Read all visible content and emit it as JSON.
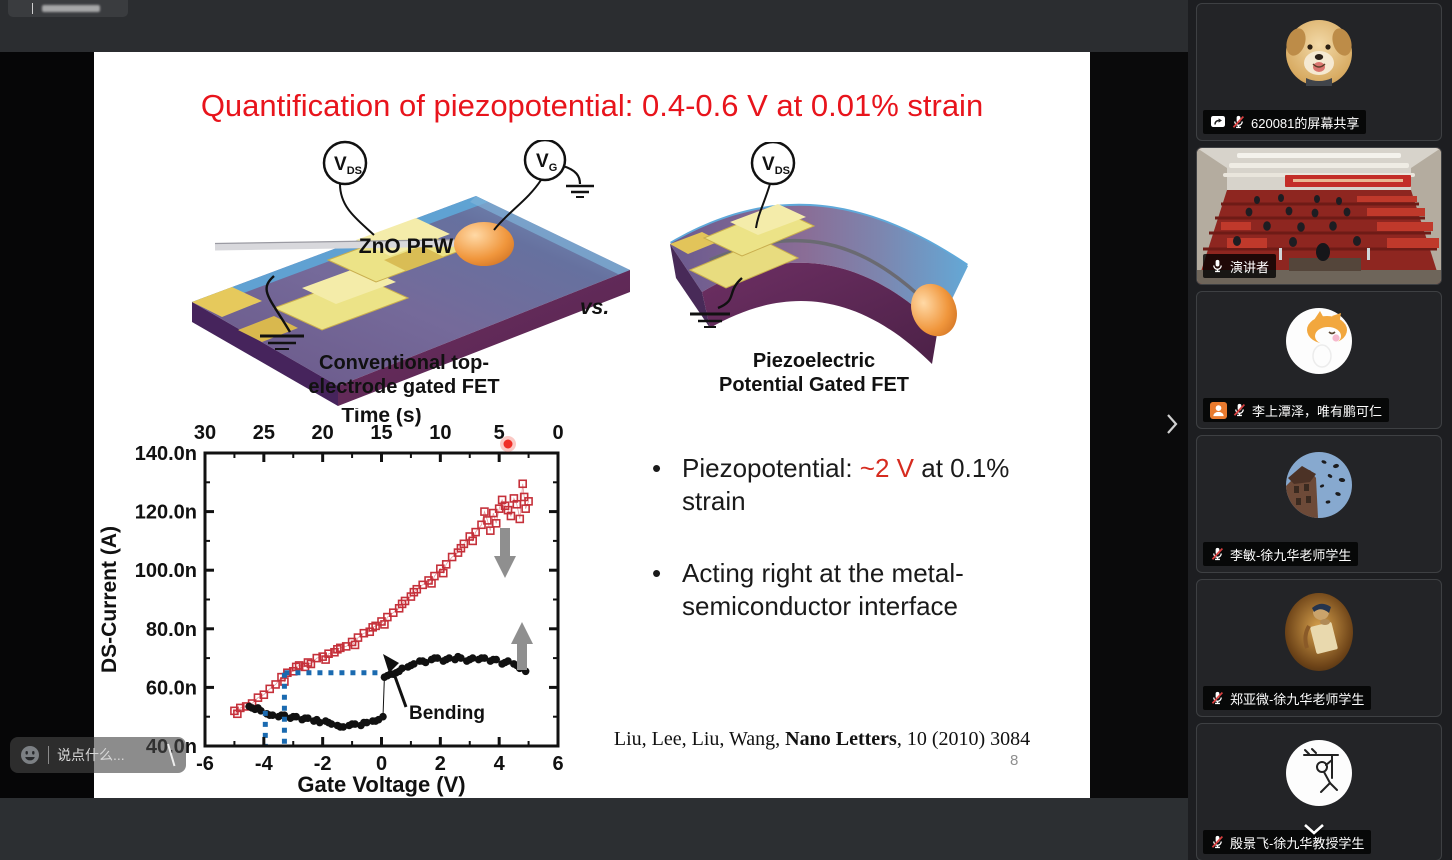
{
  "app": {
    "chat": {
      "placeholder": "说点什么..."
    },
    "colors": {
      "title_red": "#e8141c",
      "highlight_red": "#d62b1f",
      "app_bg": "#2b2d30",
      "sidebar_bg": "#1d1e21"
    }
  },
  "slide": {
    "title": "Quantification of piezopotential: 0.4-0.6 V at 0.01% strain",
    "device_left": {
      "meter1": {
        "base": "V",
        "sub": "DS"
      },
      "meter2": {
        "base": "V",
        "sub": "G"
      },
      "wire_label": "ZnO PFW",
      "caption": [
        "Conventional top-",
        "electrode gated FET"
      ]
    },
    "vs_label": "vs.",
    "device_right": {
      "meter1": {
        "base": "V",
        "sub": "DS"
      },
      "caption": [
        "Piezoelectric",
        "Potential Gated FET"
      ]
    },
    "bullets": [
      {
        "pre": "Piezopotential: ",
        "highlight": "~2 V",
        "post": " at 0.1% strain"
      },
      {
        "pre": "Acting right at the metal-semiconductor interface",
        "highlight": "",
        "post": ""
      }
    ],
    "citation": {
      "authors": "Liu, Lee, Liu, Wang, ",
      "journal": "Nano Letters",
      "rest": ", 10 (2010) 3084"
    },
    "page_number": "8"
  },
  "chart_data": {
    "type": "scatter",
    "xlabel": "Gate Voltage (V)",
    "x2label": "Time (s)",
    "ylabel": "DS-Current (A)",
    "xlim": [
      -6,
      6
    ],
    "x2lim_seconds": [
      30,
      0
    ],
    "ylim_nA": [
      40,
      140
    ],
    "grid": false,
    "x_ticks": [
      "-6",
      "-4",
      "-2",
      "0",
      "2",
      "4",
      "6"
    ],
    "x2_ticks": [
      "30",
      "25",
      "20",
      "15",
      "10",
      "5",
      "0"
    ],
    "y_ticks": [
      "140.0n",
      "120.0n",
      "100.0n",
      "80.0n",
      "60.0n",
      "40.0n"
    ],
    "annotations": {
      "bending": "Bending"
    },
    "colors": {
      "blue_guide": "#1a6ab0",
      "arrow_gray": "#8f8f8f",
      "laser_red": "#ef2f28"
    },
    "series": [
      {
        "name": "red-open-squares-sweep",
        "marker": "open-square",
        "color": "#c5303a",
        "points": [
          [
            -5.0,
            52
          ],
          [
            -4.9,
            51
          ],
          [
            -4.8,
            53
          ],
          [
            -4.6,
            53.5
          ],
          [
            -4.4,
            54.5
          ],
          [
            -4.2,
            56.5
          ],
          [
            -4.0,
            57.5
          ],
          [
            -3.8,
            59.5
          ],
          [
            -3.6,
            61
          ],
          [
            -3.4,
            63.5
          ],
          [
            -3.3,
            62
          ],
          [
            -3.2,
            65
          ],
          [
            -3.0,
            65.5
          ],
          [
            -2.9,
            67
          ],
          [
            -2.8,
            67.5
          ],
          [
            -2.6,
            67
          ],
          [
            -2.5,
            68.5
          ],
          [
            -2.4,
            68
          ],
          [
            -2.2,
            70
          ],
          [
            -2.0,
            70.5
          ],
          [
            -1.9,
            69.5
          ],
          [
            -1.8,
            71.5
          ],
          [
            -1.6,
            72
          ],
          [
            -1.5,
            73
          ],
          [
            -1.4,
            73.5
          ],
          [
            -1.2,
            74
          ],
          [
            -1.0,
            75.5
          ],
          [
            -0.9,
            74.5
          ],
          [
            -0.8,
            77
          ],
          [
            -0.6,
            78.5
          ],
          [
            -0.4,
            79
          ],
          [
            -0.3,
            80.5
          ],
          [
            -0.2,
            81
          ],
          [
            0.0,
            82.5
          ],
          [
            0.1,
            81.5
          ],
          [
            0.2,
            84
          ],
          [
            0.4,
            85.5
          ],
          [
            0.6,
            87
          ],
          [
            0.7,
            88.5
          ],
          [
            0.8,
            89.5
          ],
          [
            1.0,
            91
          ],
          [
            1.1,
            92.5
          ],
          [
            1.2,
            93.5
          ],
          [
            1.4,
            95
          ],
          [
            1.6,
            96.5
          ],
          [
            1.7,
            95.5
          ],
          [
            1.8,
            98
          ],
          [
            2.0,
            100.5
          ],
          [
            2.1,
            99
          ],
          [
            2.2,
            102
          ],
          [
            2.4,
            104.5
          ],
          [
            2.6,
            106
          ],
          [
            2.7,
            107.5
          ],
          [
            2.8,
            109
          ],
          [
            3.0,
            111.5
          ],
          [
            3.1,
            110
          ],
          [
            3.2,
            113
          ],
          [
            3.4,
            115.5
          ],
          [
            3.5,
            120
          ],
          [
            3.6,
            117
          ],
          [
            3.7,
            113.5
          ],
          [
            3.8,
            119.5
          ],
          [
            3.9,
            116
          ],
          [
            4.0,
            121
          ],
          [
            4.1,
            124
          ],
          [
            4.2,
            122
          ],
          [
            4.3,
            120.5
          ],
          [
            4.4,
            118.5
          ],
          [
            4.5,
            124.5
          ],
          [
            4.6,
            122.5
          ],
          [
            4.7,
            117.5
          ],
          [
            4.8,
            129.5
          ],
          [
            4.85,
            125
          ],
          [
            4.9,
            121
          ],
          [
            5.0,
            123.5
          ]
        ]
      },
      {
        "name": "black-filled-circles-after-bending",
        "marker": "filled-circle",
        "color": "#111111",
        "points": [
          [
            -4.5,
            53.5
          ],
          [
            -4.4,
            53
          ],
          [
            -4.3,
            52.5
          ],
          [
            -4.2,
            53
          ],
          [
            -4.1,
            52
          ],
          [
            -3.9,
            51
          ],
          [
            -3.8,
            50.5
          ],
          [
            -3.7,
            50.5
          ],
          [
            -3.5,
            50
          ],
          [
            -3.4,
            50.5
          ],
          [
            -3.3,
            50.5
          ],
          [
            -3.1,
            49.5
          ],
          [
            -3.0,
            50
          ],
          [
            -2.9,
            50
          ],
          [
            -2.7,
            49
          ],
          [
            -2.6,
            49.5
          ],
          [
            -2.5,
            49.5
          ],
          [
            -2.3,
            48.5
          ],
          [
            -2.2,
            49
          ],
          [
            -2.1,
            48
          ],
          [
            -1.9,
            48.5
          ],
          [
            -1.8,
            48
          ],
          [
            -1.7,
            47.5
          ],
          [
            -1.5,
            47
          ],
          [
            -1.4,
            46.5
          ],
          [
            -1.3,
            46.5
          ],
          [
            -1.1,
            47
          ],
          [
            -1.0,
            47.5
          ],
          [
            -0.9,
            47.5
          ],
          [
            -0.7,
            47
          ],
          [
            -0.6,
            48
          ],
          [
            -0.5,
            48
          ],
          [
            -0.3,
            48.5
          ],
          [
            -0.2,
            48.5
          ],
          [
            -0.1,
            49
          ],
          [
            0.05,
            50
          ],
          [
            0.1,
            63.5
          ],
          [
            0.2,
            64
          ],
          [
            0.3,
            64.5
          ],
          [
            0.4,
            64.5
          ],
          [
            0.5,
            65
          ],
          [
            0.6,
            65.5
          ],
          [
            0.7,
            66.5
          ],
          [
            0.9,
            67
          ],
          [
            1.0,
            67.5
          ],
          [
            1.1,
            68
          ],
          [
            1.3,
            69
          ],
          [
            1.4,
            69
          ],
          [
            1.5,
            68.5
          ],
          [
            1.7,
            69.5
          ],
          [
            1.8,
            70
          ],
          [
            1.9,
            70
          ],
          [
            2.1,
            69
          ],
          [
            2.2,
            69.5
          ],
          [
            2.3,
            70
          ],
          [
            2.5,
            69.5
          ],
          [
            2.6,
            70.5
          ],
          [
            2.7,
            70
          ],
          [
            2.9,
            69
          ],
          [
            3.0,
            69.5
          ],
          [
            3.1,
            70
          ],
          [
            3.3,
            69.5
          ],
          [
            3.4,
            70
          ],
          [
            3.5,
            70
          ],
          [
            3.7,
            69
          ],
          [
            3.8,
            69.5
          ],
          [
            3.9,
            69.5
          ],
          [
            4.1,
            68
          ],
          [
            4.2,
            68.5
          ],
          [
            4.3,
            69
          ],
          [
            4.5,
            68
          ],
          [
            4.6,
            67.5
          ],
          [
            4.7,
            66.5
          ],
          [
            4.9,
            65.5
          ]
        ]
      }
    ],
    "guides": {
      "h_line_nA": 65,
      "h_line_x": [
        -3.3,
        0.05
      ],
      "v_lines_x": [
        -3.95,
        -3.3
      ]
    }
  },
  "sidebar": {
    "participants": [
      {
        "name": "620081的屏幕共享",
        "mic": "muted",
        "badges": [
          "screen-share"
        ],
        "avatar": "golden-retriever-puppy"
      },
      {
        "name": "演讲者",
        "mic": "on",
        "badges": [],
        "avatar": "lecture-hall-video"
      },
      {
        "name": "李上潭泽，唯有鹏可仁",
        "mic": "muted",
        "badges": [
          "member"
        ],
        "avatar": "cartoon-cat"
      },
      {
        "name": "李敏-徐九华老师学生",
        "mic": "muted",
        "badges": [],
        "avatar": "building-sky-photo"
      },
      {
        "name": "郑亚微-徐九华老师学生",
        "mic": "muted",
        "badges": [],
        "avatar": "classical-painting"
      },
      {
        "name": "殷景飞-徐九华教授学生",
        "mic": "muted",
        "badges": [],
        "avatar": "stick-figure-doodle"
      }
    ]
  }
}
